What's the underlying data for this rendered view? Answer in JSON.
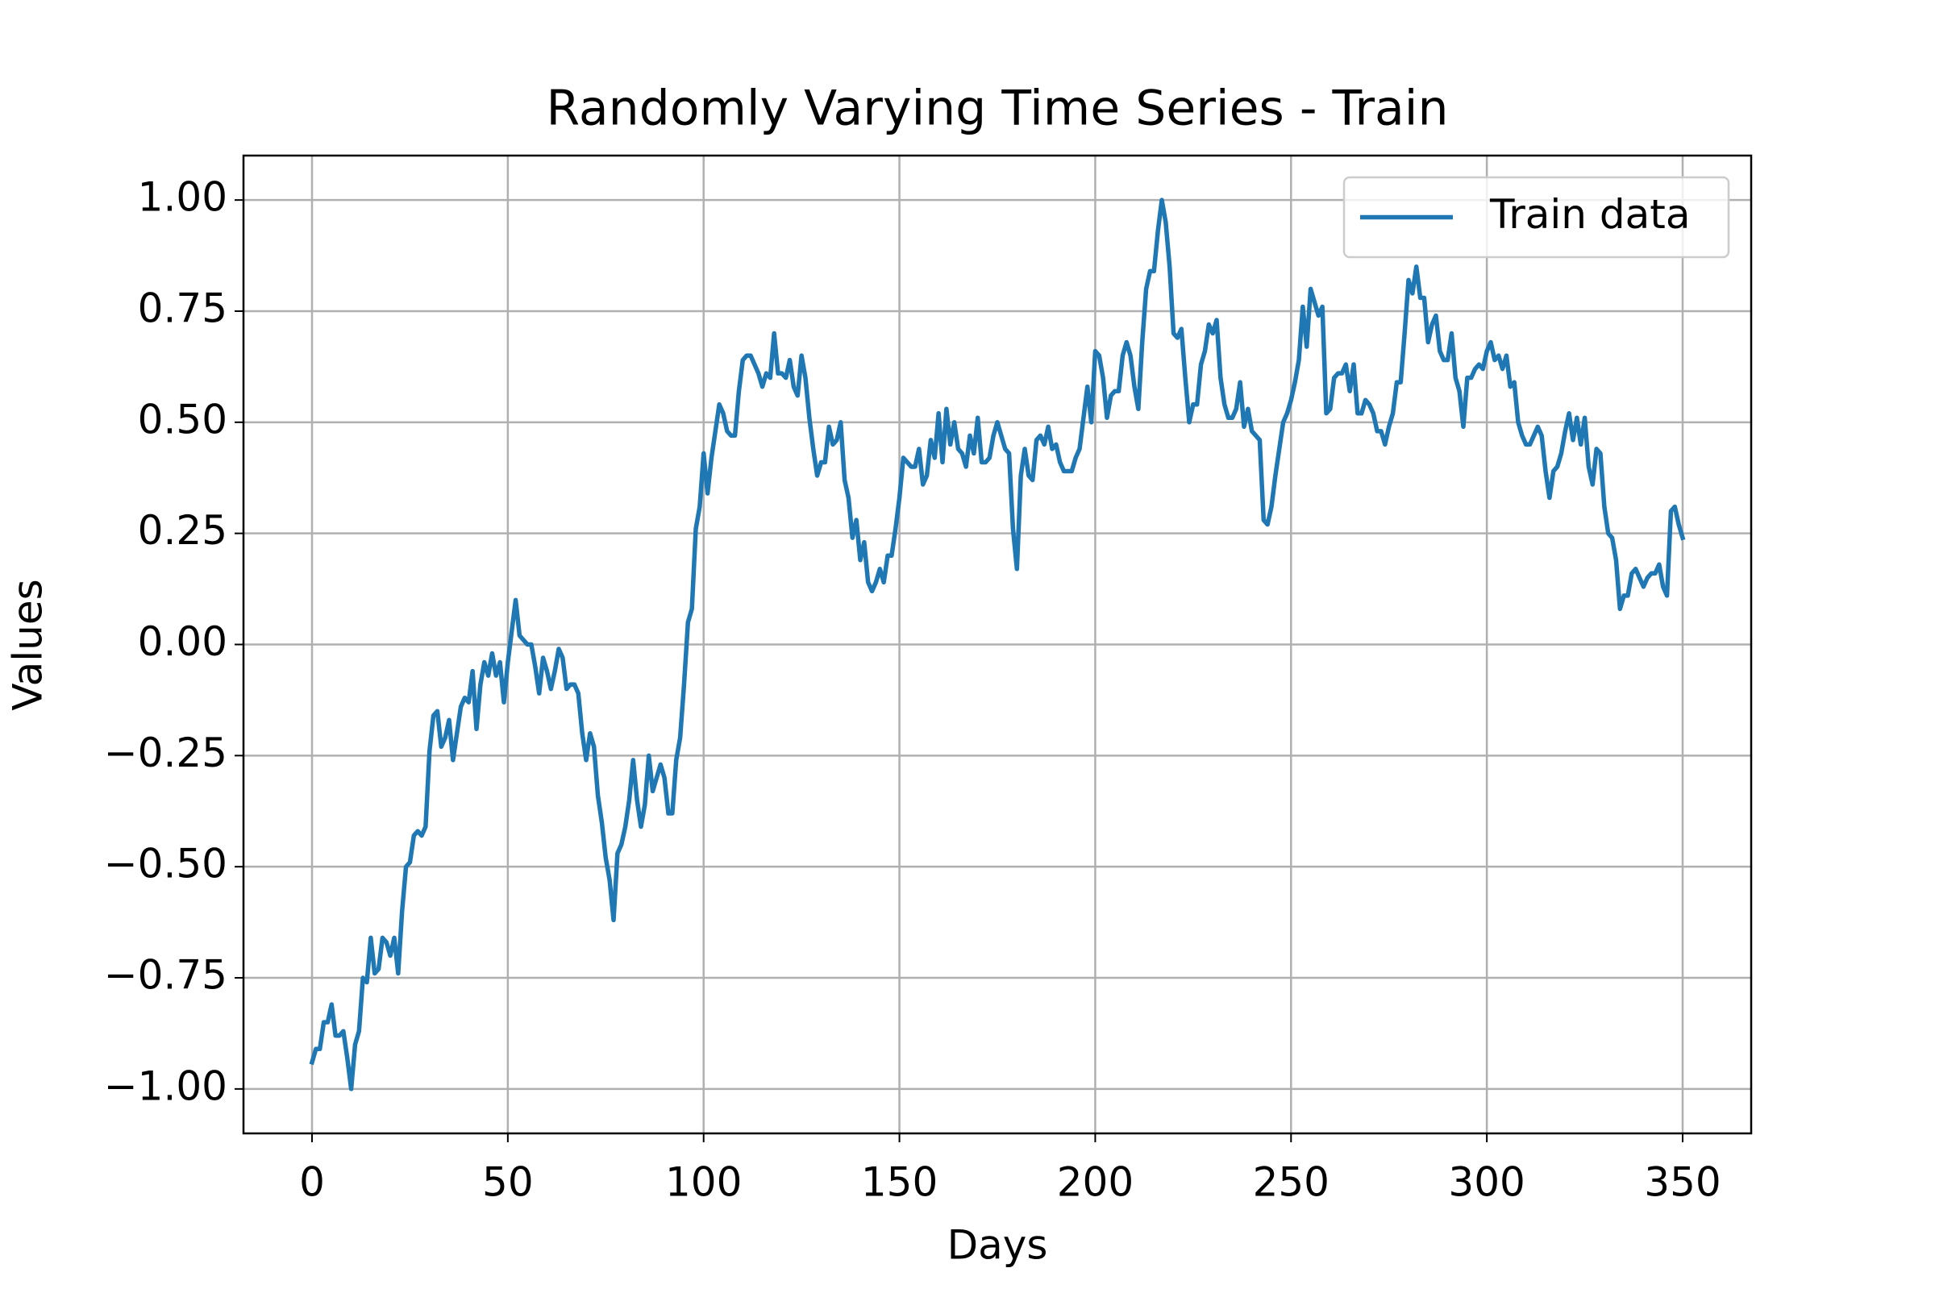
{
  "chart_data": {
    "type": "line",
    "title": "Randomly Varying Time Series - Train",
    "x_label": "Days",
    "y_label": "Values",
    "xlim": [
      -17.5,
      367.5
    ],
    "ylim": [
      -1.1,
      1.1
    ],
    "xticks": [
      0,
      50,
      100,
      150,
      200,
      250,
      300,
      350
    ],
    "yticks": [
      {
        "value": -1.0,
        "label": "−1.00"
      },
      {
        "value": -0.75,
        "label": "−0.75"
      },
      {
        "value": -0.5,
        "label": "−0.50"
      },
      {
        "value": -0.25,
        "label": "−0.25"
      },
      {
        "value": 0.0,
        "label": "0.00"
      },
      {
        "value": 0.25,
        "label": "0.25"
      },
      {
        "value": 0.5,
        "label": "0.50"
      },
      {
        "value": 0.75,
        "label": "0.75"
      },
      {
        "value": 1.0,
        "label": "1.00"
      }
    ],
    "grid": true,
    "legend": "upper right",
    "x": [
      0,
      1,
      2,
      3,
      4,
      5,
      6,
      7,
      8,
      9,
      10,
      11,
      12,
      13,
      14,
      15,
      16,
      17,
      18,
      19,
      20,
      21,
      22,
      23,
      24,
      25,
      26,
      27,
      28,
      29,
      30,
      31,
      32,
      33,
      34,
      35,
      36,
      37,
      38,
      39,
      40,
      41,
      42,
      43,
      44,
      45,
      46,
      47,
      48,
      49,
      50,
      51,
      52,
      53,
      54,
      55,
      56,
      57,
      58,
      59,
      60,
      61,
      62,
      63,
      64,
      65,
      66,
      67,
      68,
      69,
      70,
      71,
      72,
      73,
      74,
      75,
      76,
      77,
      78,
      79,
      80,
      81,
      82,
      83,
      84,
      85,
      86,
      87,
      88,
      89,
      90,
      91,
      92,
      93,
      94,
      95,
      96,
      97,
      98,
      99,
      100,
      101,
      102,
      103,
      104,
      105,
      106,
      107,
      108,
      109,
      110,
      111,
      112,
      113,
      114,
      115,
      116,
      117,
      118,
      119,
      120,
      121,
      122,
      123,
      124,
      125,
      126,
      127,
      128,
      129,
      130,
      131,
      132,
      133,
      134,
      135,
      136,
      137,
      138,
      139,
      140,
      141,
      142,
      143,
      144,
      145,
      146,
      147,
      148,
      149,
      150,
      151,
      152,
      153,
      154,
      155,
      156,
      157,
      158,
      159,
      160,
      161,
      162,
      163,
      164,
      165,
      166,
      167,
      168,
      169,
      170,
      171,
      172,
      173,
      174,
      175,
      176,
      177,
      178,
      179,
      180,
      181,
      182,
      183,
      184,
      185,
      186,
      187,
      188,
      189,
      190,
      191,
      192,
      193,
      194,
      195,
      196,
      197,
      198,
      199,
      200,
      201,
      202,
      203,
      204,
      205,
      206,
      207,
      208,
      209,
      210,
      211,
      212,
      213,
      214,
      215,
      216,
      217,
      218,
      219,
      220,
      221,
      222,
      223,
      224,
      225,
      226,
      227,
      228,
      229,
      230,
      231,
      232,
      233,
      234,
      235,
      236,
      237,
      238,
      239,
      240,
      241,
      242,
      243,
      244,
      245,
      246,
      247,
      248,
      249,
      250,
      251,
      252,
      253,
      254,
      255,
      256,
      257,
      258,
      259,
      260,
      261,
      262,
      263,
      264,
      265,
      266,
      267,
      268,
      269,
      270,
      271,
      272,
      273,
      274,
      275,
      276,
      277,
      278,
      279,
      280,
      281,
      282,
      283,
      284,
      285,
      286,
      287,
      288,
      289,
      290,
      291,
      292,
      293,
      294,
      295,
      296,
      297,
      298,
      299,
      300,
      301,
      302,
      303,
      304,
      305,
      306,
      307,
      308,
      309,
      310,
      311,
      312,
      313,
      314,
      315,
      316,
      317,
      318,
      319,
      320,
      321,
      322,
      323,
      324,
      325,
      326,
      327,
      328,
      329,
      330,
      331,
      332,
      333,
      334,
      335,
      336,
      337,
      338,
      339,
      340,
      341,
      342,
      343,
      344,
      345,
      346,
      347,
      348,
      349,
      350
    ],
    "series": [
      {
        "name": "Train data",
        "color": "#1f77b4",
        "values": [
          -0.94,
          -0.91,
          -0.91,
          -0.85,
          -0.85,
          -0.81,
          -0.88,
          -0.88,
          -0.87,
          -0.93,
          -1.0,
          -0.9,
          -0.87,
          -0.75,
          -0.76,
          -0.66,
          -0.74,
          -0.73,
          -0.66,
          -0.67,
          -0.7,
          -0.66,
          -0.74,
          -0.6,
          -0.5,
          -0.49,
          -0.43,
          -0.42,
          -0.43,
          -0.41,
          -0.24,
          -0.16,
          -0.15,
          -0.23,
          -0.21,
          -0.17,
          -0.26,
          -0.2,
          -0.14,
          -0.12,
          -0.13,
          -0.06,
          -0.19,
          -0.09,
          -0.04,
          -0.07,
          -0.02,
          -0.07,
          -0.04,
          -0.13,
          -0.04,
          0.03,
          0.1,
          0.02,
          0.01,
          0.0,
          0.0,
          -0.05,
          -0.11,
          -0.03,
          -0.06,
          -0.1,
          -0.06,
          -0.01,
          -0.03,
          -0.1,
          -0.09,
          -0.09,
          -0.11,
          -0.2,
          -0.26,
          -0.2,
          -0.23,
          -0.34,
          -0.4,
          -0.48,
          -0.53,
          -0.62,
          -0.47,
          -0.45,
          -0.41,
          -0.35,
          -0.26,
          -0.35,
          -0.41,
          -0.36,
          -0.25,
          -0.33,
          -0.3,
          -0.27,
          -0.3,
          -0.38,
          -0.38,
          -0.26,
          -0.21,
          -0.09,
          0.05,
          0.08,
          0.26,
          0.31,
          0.43,
          0.34,
          0.42,
          0.48,
          0.54,
          0.52,
          0.48,
          0.47,
          0.47,
          0.57,
          0.64,
          0.65,
          0.65,
          0.63,
          0.61,
          0.58,
          0.61,
          0.6,
          0.7,
          0.61,
          0.61,
          0.6,
          0.64,
          0.58,
          0.56,
          0.65,
          0.6,
          0.51,
          0.44,
          0.38,
          0.41,
          0.41,
          0.49,
          0.45,
          0.46,
          0.5,
          0.37,
          0.33,
          0.24,
          0.28,
          0.19,
          0.23,
          0.14,
          0.12,
          0.14,
          0.17,
          0.14,
          0.2,
          0.2,
          0.26,
          0.33,
          0.42,
          0.41,
          0.4,
          0.4,
          0.44,
          0.36,
          0.38,
          0.46,
          0.42,
          0.52,
          0.41,
          0.53,
          0.45,
          0.5,
          0.44,
          0.43,
          0.4,
          0.47,
          0.43,
          0.51,
          0.41,
          0.41,
          0.42,
          0.47,
          0.5,
          0.47,
          0.44,
          0.43,
          0.26,
          0.17,
          0.38,
          0.44,
          0.38,
          0.37,
          0.46,
          0.47,
          0.45,
          0.49,
          0.44,
          0.45,
          0.41,
          0.39,
          0.39,
          0.39,
          0.42,
          0.44,
          0.51,
          0.58,
          0.5,
          0.66,
          0.65,
          0.6,
          0.51,
          0.56,
          0.57,
          0.57,
          0.65,
          0.68,
          0.65,
          0.58,
          0.53,
          0.68,
          0.8,
          0.84,
          0.84,
          0.93,
          1.0,
          0.95,
          0.85,
          0.7,
          0.69,
          0.71,
          0.6,
          0.5,
          0.54,
          0.54,
          0.63,
          0.66,
          0.72,
          0.7,
          0.73,
          0.6,
          0.54,
          0.51,
          0.51,
          0.53,
          0.59,
          0.49,
          0.53,
          0.48,
          0.47,
          0.46,
          0.28,
          0.27,
          0.31,
          0.38,
          0.44,
          0.5,
          0.52,
          0.55,
          0.59,
          0.64,
          0.76,
          0.67,
          0.8,
          0.77,
          0.74,
          0.76,
          0.52,
          0.53,
          0.6,
          0.61,
          0.61,
          0.63,
          0.57,
          0.63,
          0.52,
          0.52,
          0.55,
          0.54,
          0.52,
          0.48,
          0.48,
          0.45,
          0.49,
          0.52,
          0.59,
          0.59,
          0.7,
          0.82,
          0.79,
          0.85,
          0.78,
          0.78,
          0.68,
          0.72,
          0.74,
          0.66,
          0.64,
          0.64,
          0.7,
          0.6,
          0.57,
          0.49,
          0.6,
          0.6,
          0.62,
          0.63,
          0.62,
          0.66,
          0.68,
          0.64,
          0.65,
          0.62,
          0.65,
          0.58,
          0.59,
          0.5,
          0.47,
          0.45,
          0.45,
          0.47,
          0.49,
          0.47,
          0.39,
          0.33,
          0.39,
          0.4,
          0.43,
          0.48,
          0.52,
          0.46,
          0.51,
          0.45,
          0.51,
          0.4,
          0.36,
          0.44,
          0.43,
          0.31,
          0.25,
          0.24,
          0.19,
          0.08,
          0.11,
          0.11,
          0.16,
          0.17,
          0.15,
          0.13,
          0.15,
          0.16,
          0.16,
          0.18,
          0.13,
          0.11,
          0.3,
          0.31,
          0.27,
          0.24
        ]
      }
    ]
  }
}
